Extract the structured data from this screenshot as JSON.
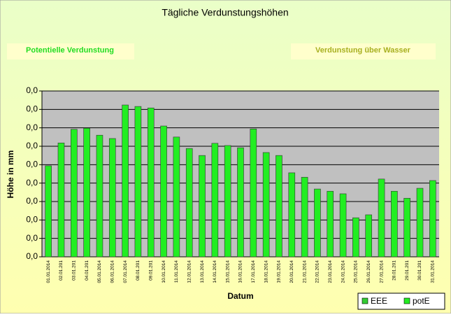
{
  "chart_data": {
    "type": "bar",
    "title": "Tägliche Verdunstungshöhen",
    "boxes": [
      "Potentielle Verdunstung",
      "Verdunstung über Wasser"
    ],
    "xlabel": "Datum",
    "ylabel": "Höhe in mm",
    "categories": [
      "01.01.2014",
      "02.01.201",
      "03.01.201",
      "04.01.201",
      "05.01.2014",
      "06.01.2014",
      "07.01.2014",
      "08.01.201",
      "09.01.201",
      "10.01.2014",
      "11.01.2014",
      "12.01.2014",
      "13.01.2014",
      "14.01.2014",
      "15.01.2014",
      "16.01.2014",
      "17.01.2014",
      "18.01.2014",
      "19.01.2014",
      "20.01.2014",
      "21.01.2014",
      "22.01.2014",
      "23.01.2014",
      "24.01.2014",
      "25.01.2014",
      "26.01.2014",
      "27.01.2014",
      "28.01.201",
      "29.01.201",
      "30.01.201",
      "31.01.2014"
    ],
    "series": [
      {
        "name": "EEE",
        "color": "#33cc33",
        "values": [
          null,
          null,
          null,
          null,
          null,
          null,
          null,
          null,
          null,
          null,
          null,
          null,
          null,
          null,
          null,
          null,
          null,
          null,
          null,
          null,
          null,
          null,
          null,
          null,
          null,
          null,
          null,
          null,
          null,
          null,
          null
        ]
      },
      {
        "name": "potE",
        "color": "#22ee22",
        "values": [
          0.0247,
          0.0309,
          0.0346,
          0.0349,
          0.033,
          0.0321,
          0.0412,
          0.0408,
          0.0404,
          0.0355,
          0.0325,
          0.0294,
          0.0275,
          0.0308,
          0.0302,
          0.0296,
          0.0347,
          0.0283,
          0.0275,
          0.0228,
          0.0216,
          0.0184,
          0.0178,
          0.0171,
          0.0106,
          0.0114,
          0.0211,
          0.0178,
          0.0159,
          0.0186,
          0.0207
        ]
      }
    ],
    "ylim": [
      0,
      0.045
    ],
    "yticks": [
      {
        "value": 0,
        "label": "0,0"
      },
      {
        "value": 0.005,
        "label": "0,0"
      },
      {
        "value": 0.01,
        "label": "0,0"
      },
      {
        "value": 0.015,
        "label": "0,0"
      },
      {
        "value": 0.02,
        "label": "0,0"
      },
      {
        "value": 0.025,
        "label": "0,0"
      },
      {
        "value": 0.03,
        "label": "0,0"
      },
      {
        "value": 0.035,
        "label": "0,0"
      },
      {
        "value": 0.04,
        "label": "0,0"
      },
      {
        "value": 0.045,
        "label": "0,0"
      }
    ],
    "grid": true
  }
}
